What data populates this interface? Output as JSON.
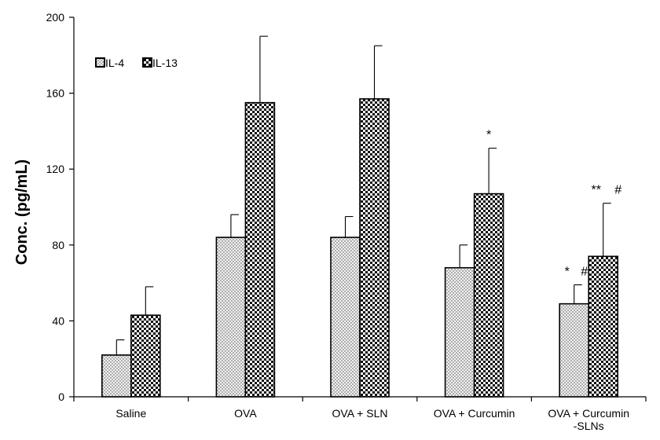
{
  "chart_data": {
    "type": "bar",
    "title": "",
    "xlabel": "",
    "ylabel": "Conc. (pg/mL)",
    "ylim": [
      0,
      200
    ],
    "yticks": [
      0,
      40,
      80,
      120,
      160,
      200
    ],
    "grid": false,
    "legend_position": "top-left",
    "categories": [
      [
        "Saline"
      ],
      [
        "OVA"
      ],
      [
        "OVA + SLN"
      ],
      [
        "OVA + Curcumin"
      ],
      [
        "OVA + Curcumin",
        "-SLNs"
      ]
    ],
    "series": [
      {
        "name": "IL-4",
        "pattern": "dots",
        "values": [
          22,
          84,
          84,
          68,
          49
        ],
        "errors": [
          8,
          12,
          11,
          12,
          10
        ],
        "annotations": [
          "",
          "",
          "",
          "",
          "* #"
        ]
      },
      {
        "name": "IL-13",
        "pattern": "checker",
        "values": [
          43,
          155,
          157,
          107,
          74
        ],
        "errors": [
          15,
          35,
          28,
          24,
          28
        ],
        "annotations": [
          "",
          "",
          "",
          "*",
          "** #"
        ]
      }
    ]
  }
}
